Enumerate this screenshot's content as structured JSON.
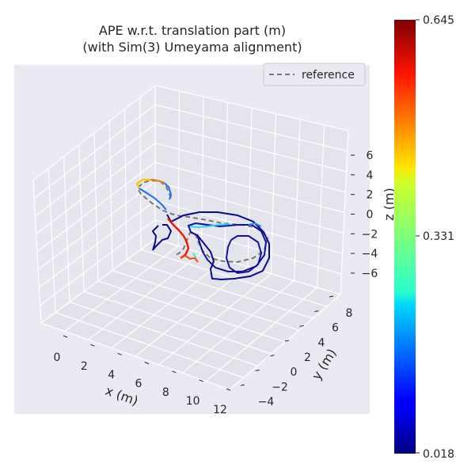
{
  "chart_data": {
    "type": "line",
    "title_line1": "APE w.r.t. translation part (m)",
    "title_line2": "(with Sim(3) Umeyama alignment)",
    "xlabel": "x (m)",
    "ylabel": "y (m)",
    "zlabel": "z (m)",
    "x_ticks": [
      "0",
      "2",
      "4",
      "6",
      "8",
      "10",
      "12"
    ],
    "y_ticks": [
      "−4",
      "−2",
      "0",
      "2",
      "4",
      "6",
      "8"
    ],
    "z_ticks": [
      "6",
      "4",
      "2",
      "0",
      "−2",
      "−4",
      "−6"
    ],
    "legend": {
      "placement": "top-right",
      "entries": [
        {
          "label": "reference",
          "style": "dashed",
          "color": "#777777"
        }
      ]
    },
    "colorbar": {
      "colormap": "jet",
      "min_label": "0.018",
      "mid_label": "0.331",
      "max_label": "0.645",
      "min": 0.018,
      "mid": 0.331,
      "max": 0.645
    },
    "colors": {
      "pane_bg": "#eaeaf2",
      "grid": "#ffffff",
      "reference": "#777777",
      "trajectory_low": "#0a0a8c"
    },
    "grid": true
  }
}
